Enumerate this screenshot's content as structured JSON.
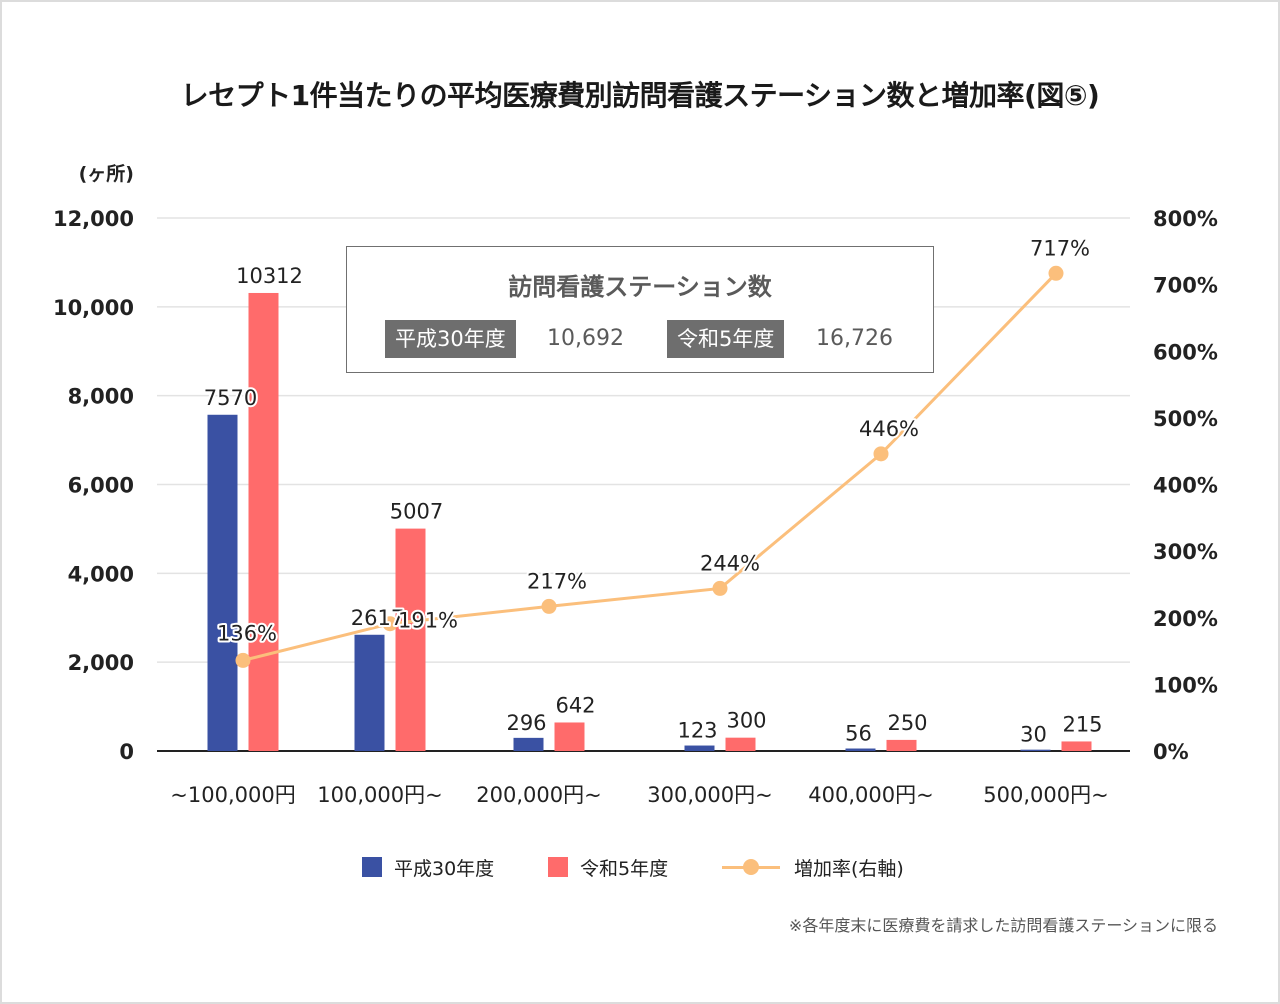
{
  "chart_data": {
    "type": "bar",
    "title": "レセプト1件当たりの平均医療費別訪問看護ステーション数と増加率(図⑤)",
    "y_unit_label": "(ヶ所)",
    "categories": [
      "~100,000円",
      "100,000円~",
      "200,000円~",
      "300,000円~",
      "400,000円~",
      "500,000円~"
    ],
    "series": [
      {
        "name": "平成30年度",
        "type": "bar",
        "axis": "left",
        "color": "#3a51a3",
        "values": [
          7570,
          2617,
          296,
          123,
          56,
          30
        ],
        "labels": [
          "7570",
          "2617",
          "296",
          "123",
          "56",
          "30"
        ]
      },
      {
        "name": "令和5年度",
        "type": "bar",
        "axis": "left",
        "color": "#ff6b6b",
        "values": [
          10312,
          5007,
          642,
          300,
          250,
          215
        ],
        "labels": [
          "10312",
          "5007",
          "642",
          "300",
          "250",
          "215"
        ]
      },
      {
        "name": "増加率(右軸)",
        "type": "line",
        "axis": "right",
        "color": "#fbbf7c",
        "values": [
          136,
          191,
          217,
          244,
          446,
          717
        ],
        "labels": [
          "136%",
          "191%",
          "217%",
          "244%",
          "446%",
          "717%"
        ]
      }
    ],
    "y_left": {
      "ylim": [
        0,
        12000
      ],
      "ticks": [
        0,
        2000,
        4000,
        6000,
        8000,
        10000,
        12000
      ],
      "tick_labels": [
        "0",
        "2,000",
        "4,000",
        "6,000",
        "8,000",
        "10,000",
        "12,000"
      ]
    },
    "y_right": {
      "ylim": [
        0,
        800
      ],
      "ticks": [
        0,
        100,
        200,
        300,
        400,
        500,
        600,
        700,
        800
      ],
      "tick_labels": [
        "0%",
        "100%",
        "200%",
        "300%",
        "400%",
        "500%",
        "600%",
        "700%",
        "800%"
      ]
    },
    "grid": true,
    "legend_position": "bottom",
    "gridline_color": "#e3e3e3",
    "baseline_color": "#222222"
  },
  "infobox": {
    "title": "訪問看護ステーション数",
    "items": [
      {
        "label": "平成30年度",
        "value": "10,692"
      },
      {
        "label": "令和5年度",
        "value": "16,726"
      }
    ]
  },
  "legend": [
    {
      "label": "平成30年度",
      "color": "#3a51a3",
      "kind": "bar"
    },
    {
      "label": "令和5年度",
      "color": "#ff6b6b",
      "kind": "bar"
    },
    {
      "label": "増加率(右軸)",
      "color": "#fbbf7c",
      "kind": "line"
    }
  ],
  "footnote": "※各年度末に医療費を請求した訪問看護ステーションに限る"
}
